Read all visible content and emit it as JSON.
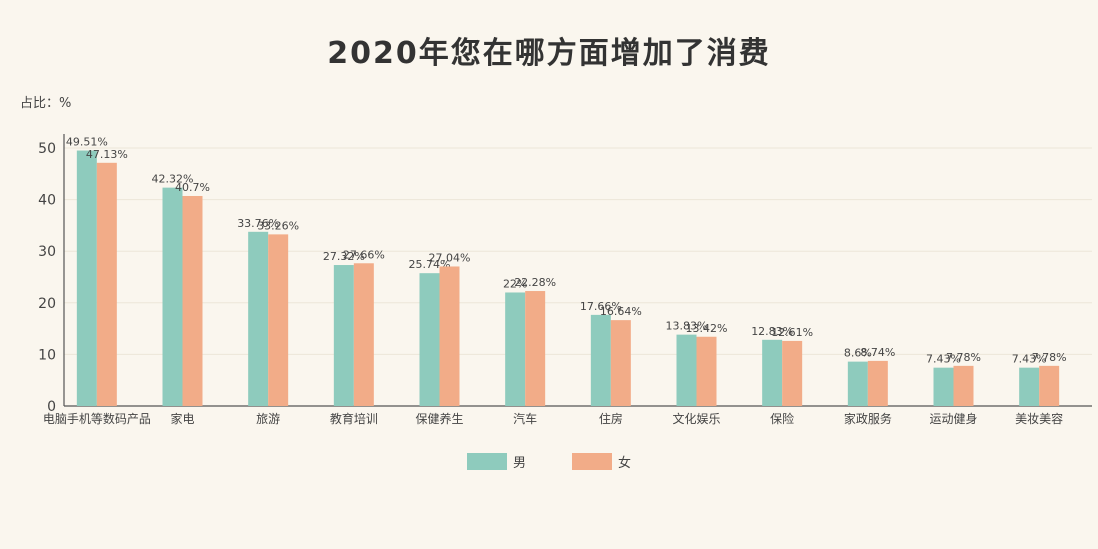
{
  "chart_data": {
    "type": "bar",
    "title": "2020年您在哪方面增加了消费",
    "ylabel": "占比：%",
    "ylim": [
      0,
      50
    ],
    "yticks": [
      0,
      10,
      20,
      30,
      40,
      50
    ],
    "categories": [
      "电脑手机等数码产品",
      "家电",
      "旅游",
      "教育培训",
      "保健养生",
      "汽车",
      "住房",
      "文化娱乐",
      "保险",
      "家政服务",
      "运动健身",
      "美妆美容"
    ],
    "series": [
      {
        "name": "男",
        "color": "#8ecbbd",
        "values": [
          49.51,
          42.32,
          33.76,
          27.32,
          25.74,
          22,
          17.66,
          13.83,
          12.83,
          8.6,
          7.43,
          7.43
        ],
        "labels": [
          "49.51%",
          "42.32%",
          "33.76%",
          "27.32%",
          "25.74%",
          "22%",
          "17.66%",
          "13.83%",
          "12.83%",
          "8.6%",
          "7.43%",
          "7.43%"
        ]
      },
      {
        "name": "女",
        "color": "#f2ac88",
        "values": [
          47.13,
          40.7,
          33.26,
          27.66,
          27.04,
          22.28,
          16.64,
          13.42,
          12.61,
          8.74,
          7.78,
          7.78
        ],
        "labels": [
          "47.13%",
          "40.7%",
          "33.26%",
          "27.66%",
          "27.04%",
          "22.28%",
          "16.64%",
          "13.42%",
          "12.61%",
          "8.74%",
          "7.78%",
          "7.78%"
        ]
      }
    ],
    "grid": true,
    "legend_position": "bottom-center"
  }
}
